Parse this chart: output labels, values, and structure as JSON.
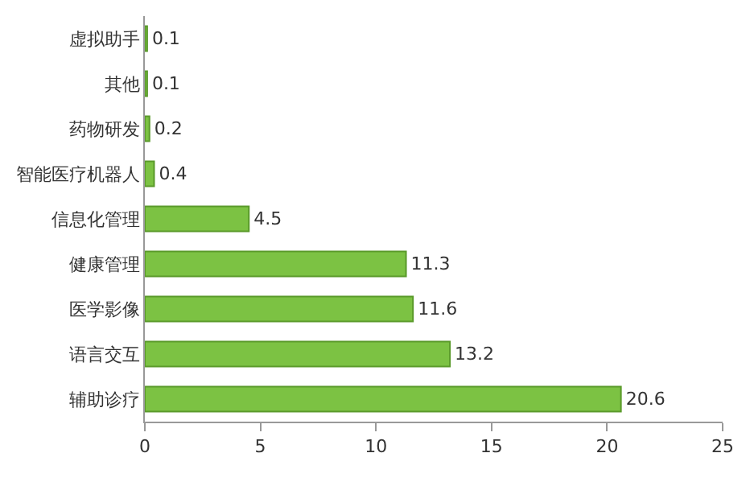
{
  "chart_data": {
    "type": "bar",
    "orientation": "horizontal",
    "categories": [
      "虚拟助手",
      "其他",
      "药物研发",
      "智能医疗机器人",
      "信息化管理",
      "健康管理",
      "医学影像",
      "语言交互",
      "辅助诊疗"
    ],
    "values": [
      0.1,
      0.1,
      0.2,
      0.4,
      4.5,
      11.3,
      11.6,
      13.2,
      20.6
    ],
    "color": "#7cc243",
    "xlim": [
      0,
      25
    ],
    "xticks": [
      0,
      5,
      10,
      15,
      20,
      25
    ],
    "data_labels": true
  }
}
